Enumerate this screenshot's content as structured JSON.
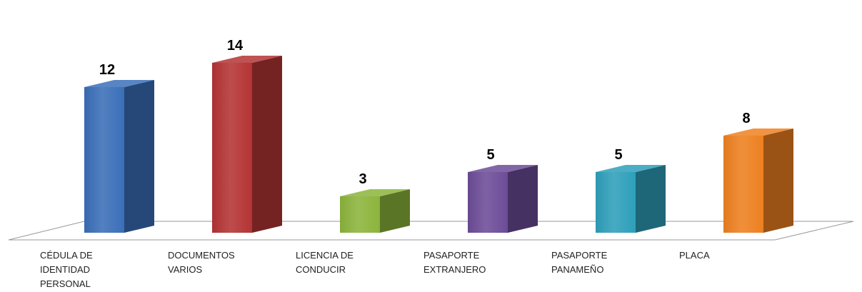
{
  "chart_data": {
    "type": "bar",
    "style": "3d-column",
    "categories": [
      "CÉDULA DE IDENTIDAD PERSONAL",
      "DOCUMENTOS VARIOS",
      "LICENCIA DE CONDUCIR",
      "PASAPORTE EXTRANJERO",
      "PASAPORTE PANAMEÑO",
      "PLACA"
    ],
    "category_lines": [
      [
        "CÉDULA DE",
        "IDENTIDAD",
        "PERSONAL"
      ],
      [
        "DOCUMENTOS",
        "VARIOS"
      ],
      [
        "LICENCIA DE",
        "CONDUCIR"
      ],
      [
        "PASAPORTE",
        "EXTRANJERO"
      ],
      [
        "PASAPORTE",
        "PANAMEÑO"
      ],
      [
        "PLACA"
      ]
    ],
    "values": [
      12,
      14,
      3,
      5,
      5,
      8
    ],
    "data_labels": [
      "12",
      "14",
      "3",
      "5",
      "5",
      "8"
    ],
    "colors": [
      "#3a6fb8",
      "#b43434",
      "#8cb43c",
      "#6c4c98",
      "#2e9fba",
      "#ee8020"
    ],
    "title": "",
    "xlabel": "",
    "ylabel": "",
    "ylim": [
      0,
      14
    ],
    "grid": false,
    "legend": "none"
  }
}
